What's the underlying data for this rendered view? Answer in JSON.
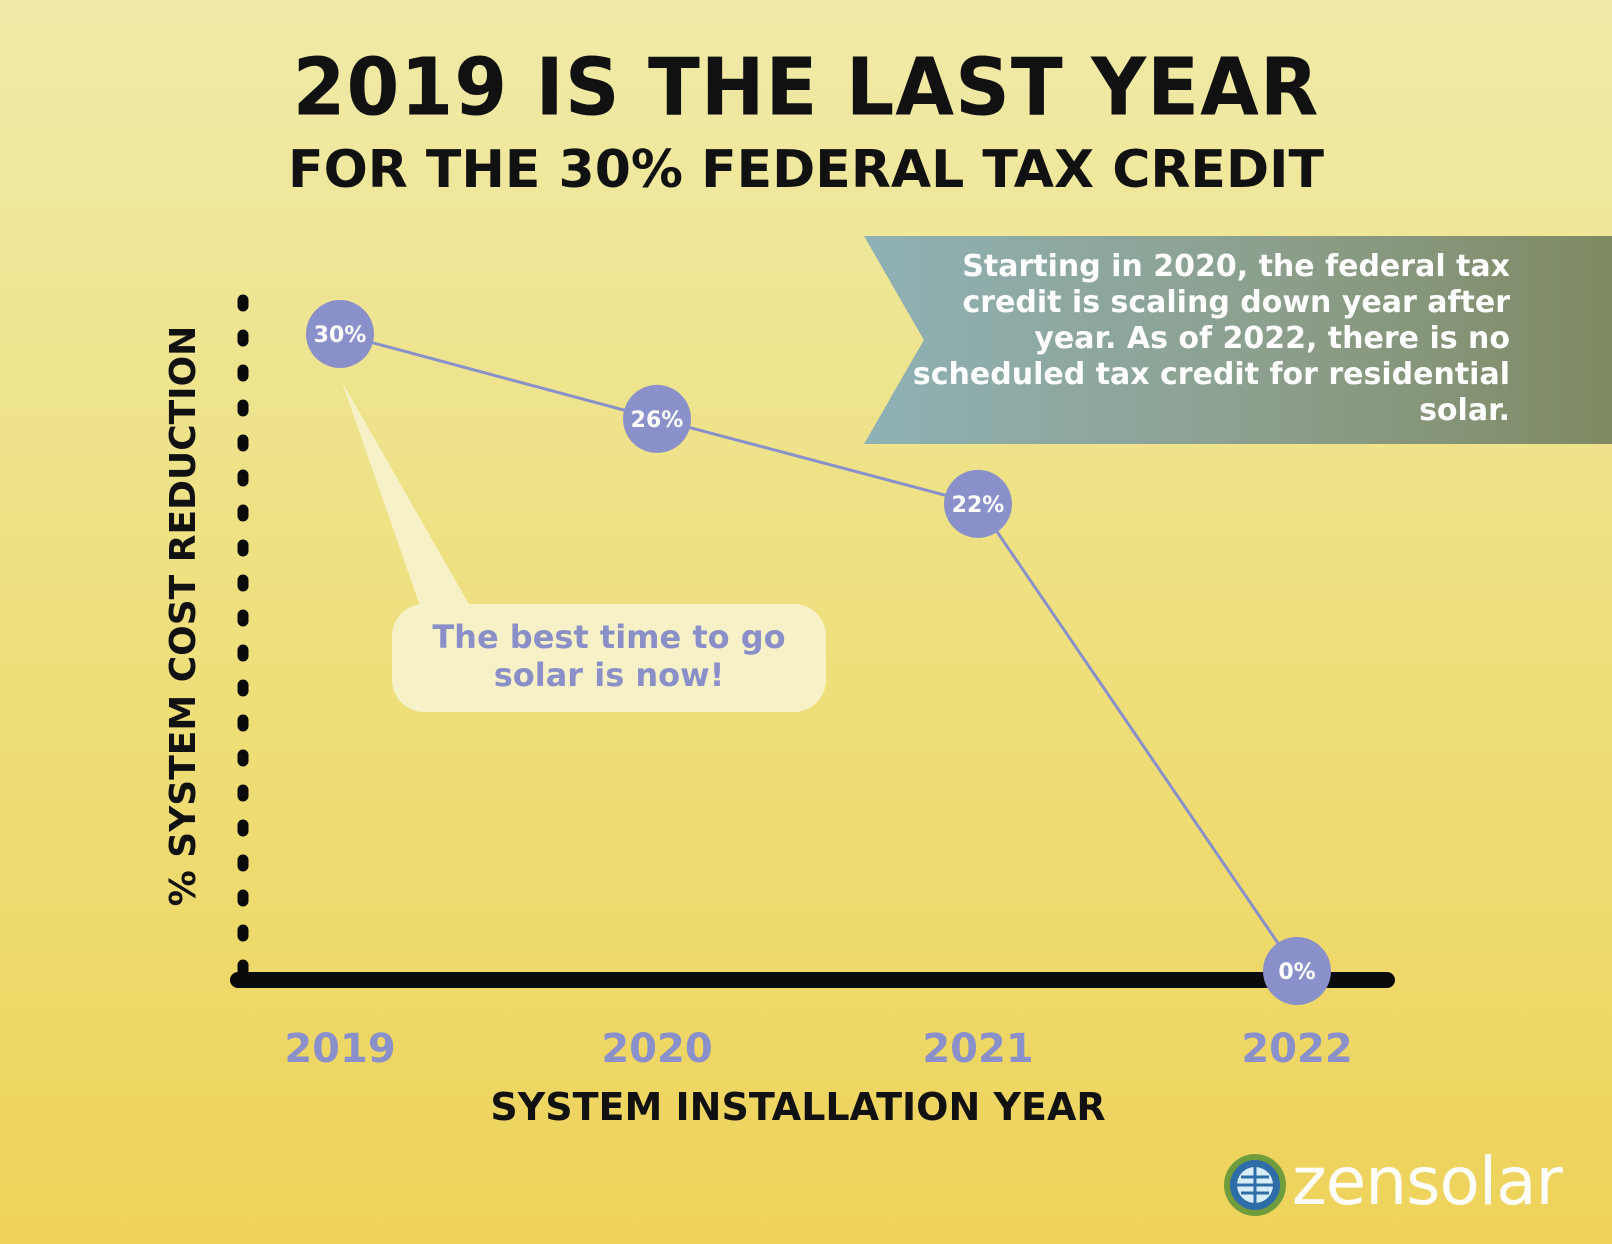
{
  "header": {
    "title": "2019 IS THE LAST YEAR",
    "subtitle": "FOR THE 30% FEDERAL TAX CREDIT"
  },
  "callout": {
    "text": "Starting in 2020, the federal tax credit is scaling down year after year. As of 2022, there is no scheduled tax credit for residential solar."
  },
  "bubble": {
    "text": "The best time to go solar is now!"
  },
  "brand": {
    "name": "zensolar"
  },
  "colors": {
    "marker": "#8a90c9",
    "line": "#8a90c9",
    "axis": "#0a0a0a",
    "tick_label": "#8a90c9",
    "ribbon": "#8fa89f",
    "bubble_bg": "#f7f1c8"
  },
  "chart_data": {
    "type": "line",
    "categories": [
      "2019",
      "2020",
      "2021",
      "2022"
    ],
    "values": [
      30,
      26,
      22,
      0
    ],
    "data_labels": [
      "30%",
      "26%",
      "22%",
      "0%"
    ],
    "xlabel": "SYSTEM INSTALLATION YEAR",
    "ylabel": "% SYSTEM COST REDUCTION",
    "ylim": [
      0,
      30
    ],
    "grid": false,
    "legend": "none"
  }
}
